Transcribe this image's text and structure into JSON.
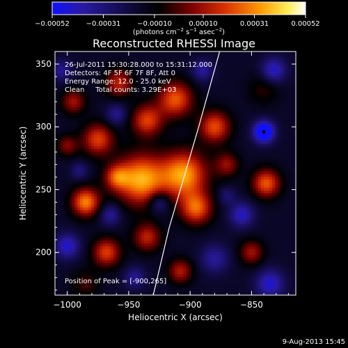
{
  "chart_data": {
    "type": "heatmap",
    "title": "Reconstructed RHESSI Image",
    "xlabel": "Heliocentric X (arcsec)",
    "ylabel": "Heliocentric Y (arcsec)",
    "xlim": [
      -1010,
      -814
    ],
    "ylim": [
      166,
      360
    ],
    "x_ticks": [
      -1000,
      -950,
      -900,
      -850
    ],
    "x_tick_labels": [
      "−1000",
      "−950",
      "−900",
      "−850"
    ],
    "y_ticks": [
      200,
      250,
      300,
      350
    ],
    "y_tick_labels": [
      "200",
      "250",
      "300",
      "350"
    ],
    "colorbar": {
      "range": [
        -0.00052,
        0.00052
      ],
      "ticks": [
        -0.00052,
        -0.00031,
        -0.0001,
        0.0001,
        0.00031,
        0.00052
      ],
      "tick_labels": [
        "−0.00052",
        "−0.00031",
        "−0.00010",
        "0.00010",
        "0.00031",
        "0.00052"
      ],
      "label_prefix": "(photons cm",
      "label_exp1": "−2",
      "label_mid": " s",
      "label_exp2": "−1",
      "label_mid2": " asec",
      "label_exp3": "−2",
      "label_suffix": ")",
      "colors": [
        "#1010ff",
        "#2a1aa0",
        "#000000",
        "#7a0000",
        "#d83000",
        "#ff9900",
        "#ffee55",
        "#ffffff"
      ]
    },
    "annotations": [
      "26-Jul-2011 15:30:28.000 to 15:31:12.000",
      "Detectors: 4F 5F 6F 7F 8F, Att 0",
      "Energy Range: 12.0 - 25.0 keV",
      "Clean     Total counts: 3.29E+03"
    ],
    "peak_text": "Position of Peak = [-900,265]",
    "peak": [
      -900,
      265
    ],
    "limb_line": [
      [
        -930,
        166
      ],
      [
        -917,
        220
      ],
      [
        -905,
        260
      ],
      [
        -893,
        300
      ],
      [
        -876,
        360
      ]
    ],
    "sources": [
      {
        "x": -940,
        "y": 258,
        "amp": 0.00052,
        "w": 14
      },
      {
        "x": -905,
        "y": 262,
        "amp": 0.0005,
        "w": 13
      },
      {
        "x": -985,
        "y": 240,
        "amp": 0.00046,
        "w": 8
      },
      {
        "x": -975,
        "y": 290,
        "amp": 0.00036,
        "w": 9
      },
      {
        "x": -935,
        "y": 305,
        "amp": 0.00036,
        "w": 9
      },
      {
        "x": -958,
        "y": 335,
        "amp": 0.0003,
        "w": 8
      },
      {
        "x": -995,
        "y": 320,
        "amp": 0.00026,
        "w": 7
      },
      {
        "x": -912,
        "y": 322,
        "amp": 0.0004,
        "w": 10
      },
      {
        "x": -880,
        "y": 300,
        "amp": 0.00038,
        "w": 9
      },
      {
        "x": -895,
        "y": 235,
        "amp": 0.0004,
        "w": 9
      },
      {
        "x": -968,
        "y": 200,
        "amp": 0.00036,
        "w": 8
      },
      {
        "x": -935,
        "y": 212,
        "amp": 0.0003,
        "w": 8
      },
      {
        "x": -908,
        "y": 185,
        "amp": 0.00028,
        "w": 7
      },
      {
        "x": -838,
        "y": 255,
        "amp": 0.0004,
        "w": 8
      },
      {
        "x": -850,
        "y": 200,
        "amp": 0.00026,
        "w": 7
      },
      {
        "x": -1000,
        "y": 285,
        "amp": 0.00022,
        "w": 6
      },
      {
        "x": -960,
        "y": 260,
        "amp": 0.0003,
        "w": 7
      },
      {
        "x": -870,
        "y": 270,
        "amp": 0.00024,
        "w": 7
      },
      {
        "x": -840,
        "y": 330,
        "amp": 0.00012,
        "w": 9
      },
      {
        "x": -985,
        "y": 175,
        "amp": 0.00014,
        "w": 8
      },
      {
        "x": -840,
        "y": 296,
        "amp": -0.00052,
        "w": 6
      },
      {
        "x": -832,
        "y": 345,
        "amp": -0.0003,
        "w": 7
      },
      {
        "x": -858,
        "y": 230,
        "amp": -0.00028,
        "w": 7
      },
      {
        "x": -880,
        "y": 195,
        "amp": -0.00022,
        "w": 8
      },
      {
        "x": -835,
        "y": 175,
        "amp": -0.0003,
        "w": 8
      },
      {
        "x": -965,
        "y": 230,
        "amp": -0.00022,
        "w": 6
      },
      {
        "x": -960,
        "y": 310,
        "amp": -0.0002,
        "w": 6
      },
      {
        "x": -1000,
        "y": 205,
        "amp": -0.0003,
        "w": 7
      },
      {
        "x": -1005,
        "y": 345,
        "amp": -0.0002,
        "w": 6
      },
      {
        "x": -925,
        "y": 240,
        "amp": -0.00024,
        "w": 6
      },
      {
        "x": -890,
        "y": 345,
        "amp": -0.00022,
        "w": 6
      },
      {
        "x": -945,
        "y": 180,
        "amp": -0.0002,
        "w": 6
      },
      {
        "x": -870,
        "y": 245,
        "amp": -0.00014,
        "w": 5
      },
      {
        "x": -990,
        "y": 265,
        "amp": -0.00016,
        "w": 5
      }
    ]
  },
  "footer_date": "9-Aug-2013 15:45"
}
